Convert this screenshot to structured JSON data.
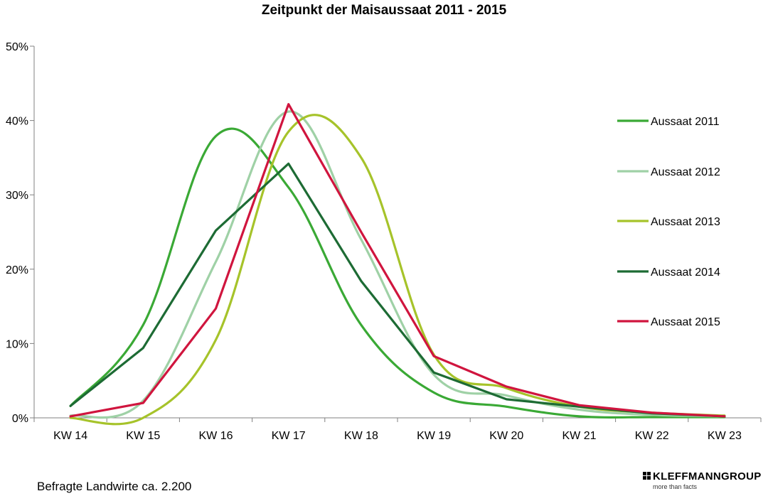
{
  "footer_text": "Befragte Landwirte ca. 2.200",
  "logo": {
    "name": "KLEFFMANNGROUP",
    "tagline": "more than facts"
  },
  "chart_data": {
    "type": "line",
    "title": "Zeitpunkt der Maisaussaat 2011 - 2015",
    "xlabel": "",
    "ylabel": "",
    "categories": [
      "KW 14",
      "KW 15",
      "KW 16",
      "KW 17",
      "KW 18",
      "KW 19",
      "KW 20",
      "KW 21",
      "KW 22",
      "KW 23"
    ],
    "ylim": [
      0,
      50
    ],
    "yticks": [
      0,
      10,
      20,
      30,
      40,
      50
    ],
    "ytick_labels": [
      "0%",
      "10%",
      "20%",
      "30%",
      "40%",
      "50%"
    ],
    "grid": false,
    "legend_position": "right",
    "smooth": true,
    "series": [
      {
        "name": "Aussaat 2011",
        "color": "#3aa935",
        "values": [
          1.6,
          12.5,
          37.9,
          31.0,
          12.5,
          3.4,
          1.5,
          0.2,
          0.1,
          0.1
        ]
      },
      {
        "name": "Aussaat 2012",
        "color": "#9fd1a6",
        "values": [
          0.3,
          2.3,
          21.0,
          41.2,
          24.0,
          5.8,
          3.0,
          1.1,
          0.4,
          0.2
        ]
      },
      {
        "name": "Aussaat 2013",
        "color": "#a6c32a",
        "values": [
          0.0,
          0.0,
          10.5,
          38.5,
          35.0,
          8.5,
          4.0,
          1.5,
          0.7,
          0.3
        ]
      },
      {
        "name": "Aussaat 2014",
        "color": "#1d6b34",
        "values": [
          1.6,
          9.4,
          25.2,
          34.2,
          18.4,
          6.1,
          2.5,
          1.5,
          0.6,
          0.2
        ]
      },
      {
        "name": "Aussaat 2015",
        "color": "#d0153e",
        "values": [
          0.2,
          2.0,
          14.7,
          42.2,
          25.0,
          8.3,
          4.2,
          1.7,
          0.7,
          0.2
        ]
      }
    ]
  }
}
